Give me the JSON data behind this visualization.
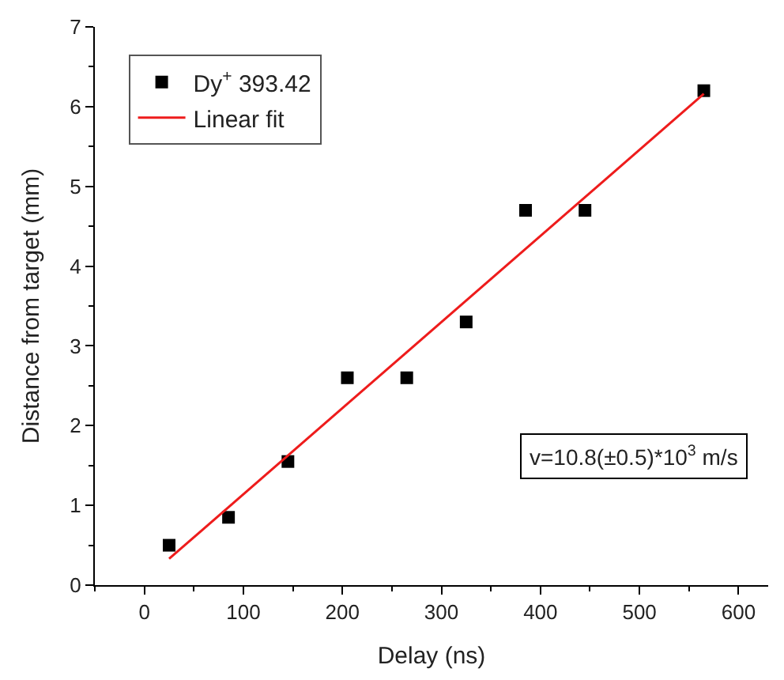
{
  "chart_data": {
    "type": "scatter",
    "xlabel": "Delay (ns)",
    "ylabel": "Distance from target (mm)",
    "xlim": [
      -50,
      630
    ],
    "xticks": [
      0,
      100,
      200,
      300,
      400,
      500,
      600
    ],
    "ylim": [
      0,
      7
    ],
    "yticks": [
      0,
      1,
      2,
      3,
      4,
      5,
      6,
      7
    ],
    "legend": "top left",
    "series": [
      {
        "name": "Dy$^{+}$ 393.42",
        "color": "#000000",
        "marker": "square",
        "x": [
          25,
          85,
          145,
          205,
          265,
          325,
          385,
          445,
          565
        ],
        "values": [
          0.5,
          0.85,
          1.55,
          2.6,
          2.6,
          3.3,
          4.7,
          4.7,
          6.2
        ]
      },
      {
        "name": "Linear fit",
        "type": "line",
        "color": "#ee1c1c",
        "line_style": "solid",
        "marker": "none",
        "x": [
          25,
          565
        ],
        "values": [
          0.33,
          6.16
        ]
      }
    ],
    "annotations": [
      "v=10.8(±0.5)*10$^{3}$ m/s"
    ]
  }
}
